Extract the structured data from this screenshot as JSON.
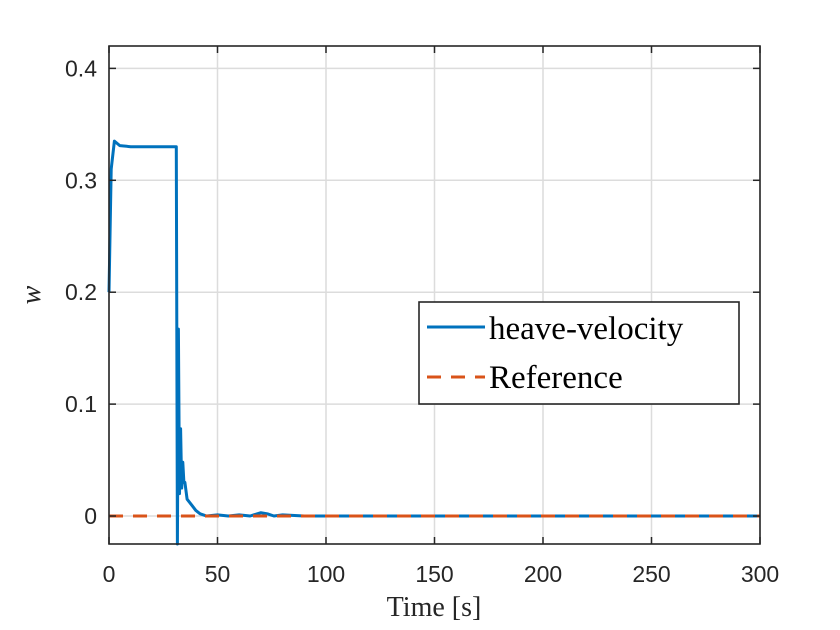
{
  "chart_data": {
    "type": "line",
    "title": "",
    "xlabel": "Time [s]",
    "ylabel": "w",
    "xlim": [
      0,
      300
    ],
    "ylim": [
      -0.025,
      0.42
    ],
    "xticks": [
      "0",
      "50",
      "100",
      "150",
      "200",
      "250",
      "300"
    ],
    "yticks": [
      "0",
      "0.1",
      "0.2",
      "0.3",
      "0.4"
    ],
    "grid": true,
    "legend_position": "center-right",
    "series": [
      {
        "name": "heave-velocity",
        "color": "#0072BD",
        "style": "solid",
        "x": [
          0,
          1,
          2.5,
          5,
          10,
          20,
          30,
          31,
          31.5,
          32,
          32.5,
          33,
          33.5,
          34,
          34.5,
          35,
          36,
          38,
          40,
          42,
          45,
          50,
          55,
          60,
          65,
          70,
          73,
          76,
          80,
          90,
          100,
          120,
          140,
          160,
          200,
          250,
          300
        ],
        "y": [
          0.2,
          0.31,
          0.335,
          0.331,
          0.33,
          0.33,
          0.33,
          0.33,
          -0.025,
          0.167,
          0.02,
          0.078,
          0.025,
          0.048,
          0.03,
          0.03,
          0.015,
          0.01,
          0.005,
          0.002,
          0.0,
          0.001,
          0.0,
          0.001,
          0.0,
          0.003,
          0.002,
          0.0,
          0.001,
          0.0,
          0.0,
          0.0,
          0.0,
          0.0,
          0.0,
          0.0,
          0.0
        ]
      },
      {
        "name": "Reference",
        "color": "#D95319",
        "style": "dashed",
        "x": [
          0,
          300
        ],
        "y": [
          0,
          0
        ]
      }
    ]
  }
}
